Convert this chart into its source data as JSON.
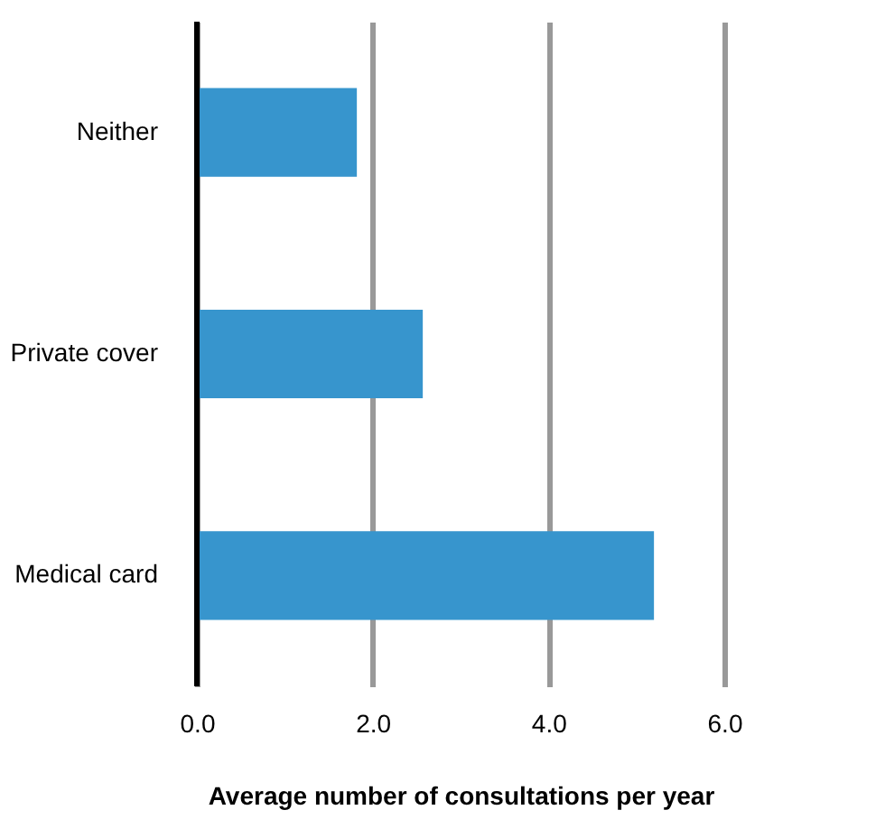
{
  "chart_data": {
    "type": "bar",
    "orientation": "horizontal",
    "xlabel": "Average number of consultations per year",
    "categories": [
      "Neither",
      "Private cover",
      "Medical card"
    ],
    "values": [
      1.82,
      2.57,
      5.2
    ],
    "color": "#3795cd",
    "xlim": [
      0,
      6
    ],
    "xticks": [
      {
        "value": 0,
        "label": "0.0"
      },
      {
        "value": 2,
        "label": "2.0"
      },
      {
        "value": 4,
        "label": "4.0"
      },
      {
        "value": 6,
        "label": "6.0"
      }
    ],
    "grid": "x"
  }
}
